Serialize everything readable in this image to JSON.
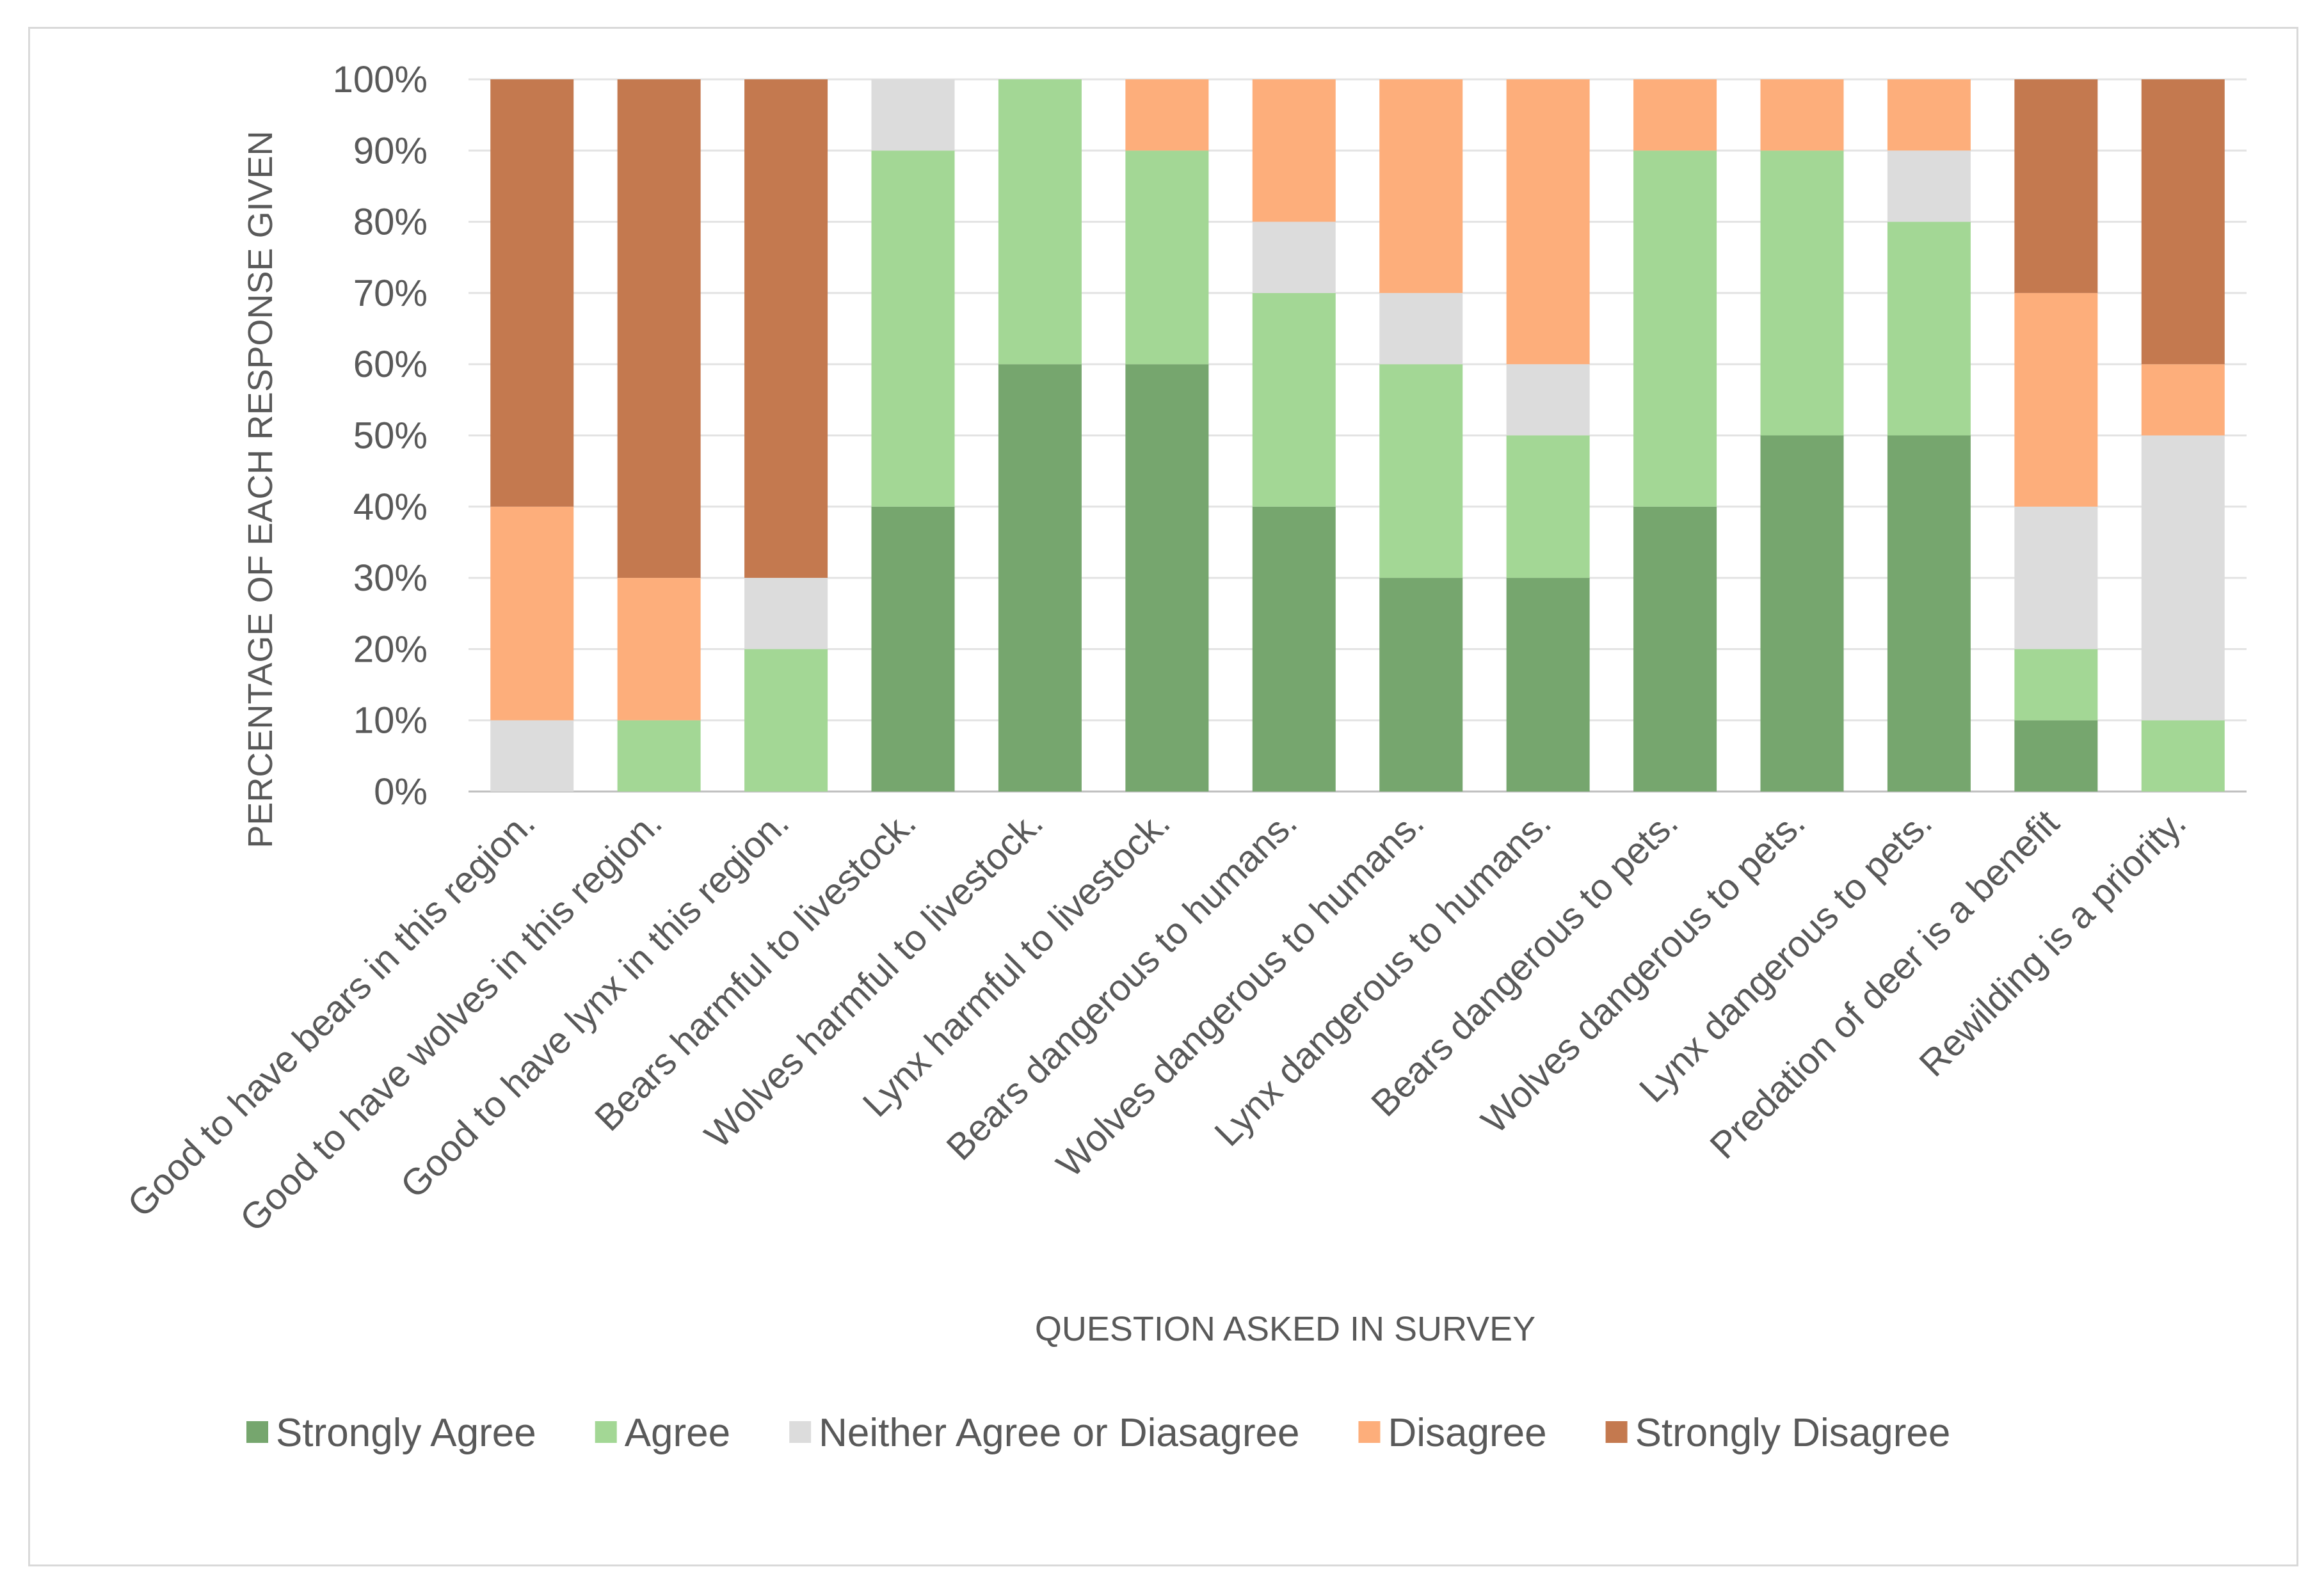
{
  "chart_data": {
    "type": "bar",
    "stacked": true,
    "percent": true,
    "title": "",
    "xlabel": "QUESTION ASKED IN SURVEY",
    "ylabel": "PERCENTAGE OF EACH RESPONSE GIVEN",
    "ylim": [
      0,
      100
    ],
    "yticks": [
      "0%",
      "10%",
      "20%",
      "30%",
      "40%",
      "50%",
      "60%",
      "70%",
      "80%",
      "90%",
      "100%"
    ],
    "grid": true,
    "legend_position": "bottom",
    "categories": [
      "Good to have bears in this region.",
      "Good to have wolves in this region.",
      "Good to have lynx in this region.",
      "Bears harmful to livestock.",
      "Wolves harmful to livestock.",
      "Lynx harmful to livestock.",
      "Bears dangerous to humans.",
      "Wolves dangerous to humans.",
      "Lynx dangerous to humans.",
      "Bears dangerous to pets.",
      "Wolves dangerous to pets.",
      "Lynx dangerous to pets.",
      "Predation of deer is a benefit",
      "Rewilding is a priority."
    ],
    "series": [
      {
        "name": "Strongly Agree",
        "color": "#76a66e",
        "values": [
          0,
          0,
          0,
          40,
          60,
          60,
          40,
          30,
          30,
          40,
          50,
          50,
          10,
          0
        ]
      },
      {
        "name": "Agree",
        "color": "#a3d795",
        "values": [
          0,
          10,
          20,
          50,
          40,
          30,
          30,
          30,
          20,
          50,
          40,
          30,
          10,
          10
        ]
      },
      {
        "name": "Neither Agree or Diasagree",
        "color": "#dcdcdc",
        "values": [
          10,
          0,
          10,
          10,
          0,
          0,
          10,
          10,
          10,
          0,
          0,
          10,
          20,
          40
        ]
      },
      {
        "name": "Disagree",
        "color": "#fdae7b",
        "values": [
          30,
          20,
          0,
          0,
          0,
          10,
          20,
          30,
          40,
          10,
          10,
          10,
          30,
          10
        ]
      },
      {
        "name": "Strongly Disagree",
        "color": "#c4794f",
        "values": [
          60,
          70,
          70,
          0,
          0,
          0,
          0,
          0,
          0,
          0,
          0,
          0,
          30,
          40
        ]
      }
    ]
  }
}
